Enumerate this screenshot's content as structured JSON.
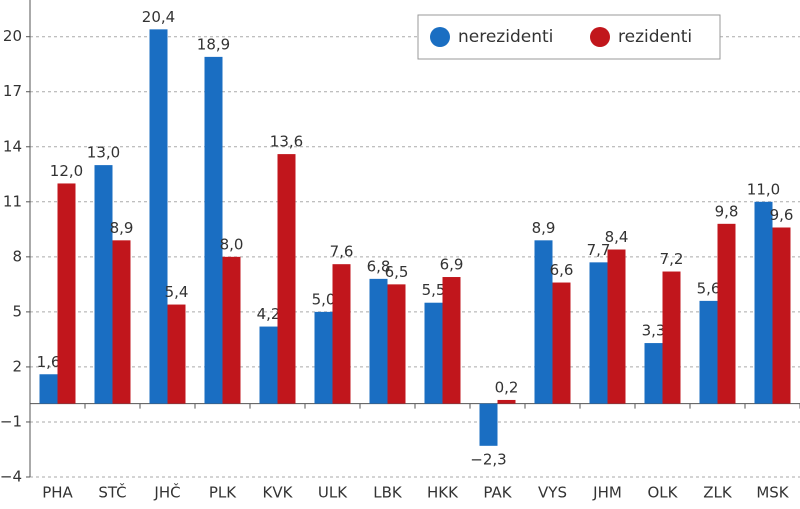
{
  "chart_data": {
    "type": "bar",
    "categories": [
      "PHA",
      "STČ",
      "JHČ",
      "PLK",
      "KVK",
      "ULK",
      "LBK",
      "HKK",
      "PAK",
      "VYS",
      "JHM",
      "OLK",
      "ZLK",
      "MSK"
    ],
    "series": [
      {
        "name": "nerezidenti",
        "color": "#1a6ec2",
        "values": [
          1.6,
          13.0,
          20.4,
          18.9,
          4.2,
          5.0,
          6.8,
          5.5,
          -2.3,
          8.9,
          7.7,
          3.3,
          5.6,
          11.0
        ],
        "value_labels": [
          "1,6",
          "13,0",
          "20,4",
          "18,9",
          "4,2",
          "5,0",
          "6,8",
          "5,5",
          "−2,3",
          "8,9",
          "7,7",
          "3,3",
          "5,6",
          "11,0"
        ]
      },
      {
        "name": "rezidenti",
        "color": "#c1161c",
        "values": [
          12.0,
          8.9,
          5.4,
          8.0,
          13.6,
          7.6,
          6.5,
          6.9,
          0.2,
          6.6,
          8.4,
          7.2,
          9.8,
          9.6
        ],
        "value_labels": [
          "12,0",
          "8,9",
          "5,4",
          "8,0",
          "13,6",
          "7,6",
          "6,5",
          "6,9",
          "0,2",
          "6,6",
          "8,4",
          "7,2",
          "9,8",
          "9,6"
        ]
      }
    ],
    "ylim": [
      -4,
      22
    ],
    "yticks": [
      {
        "value": -4,
        "label": "−4"
      },
      {
        "value": -1,
        "label": "−1"
      },
      2,
      5,
      8,
      11,
      14,
      17,
      20
    ],
    "grid": true,
    "legend": "upper right"
  }
}
